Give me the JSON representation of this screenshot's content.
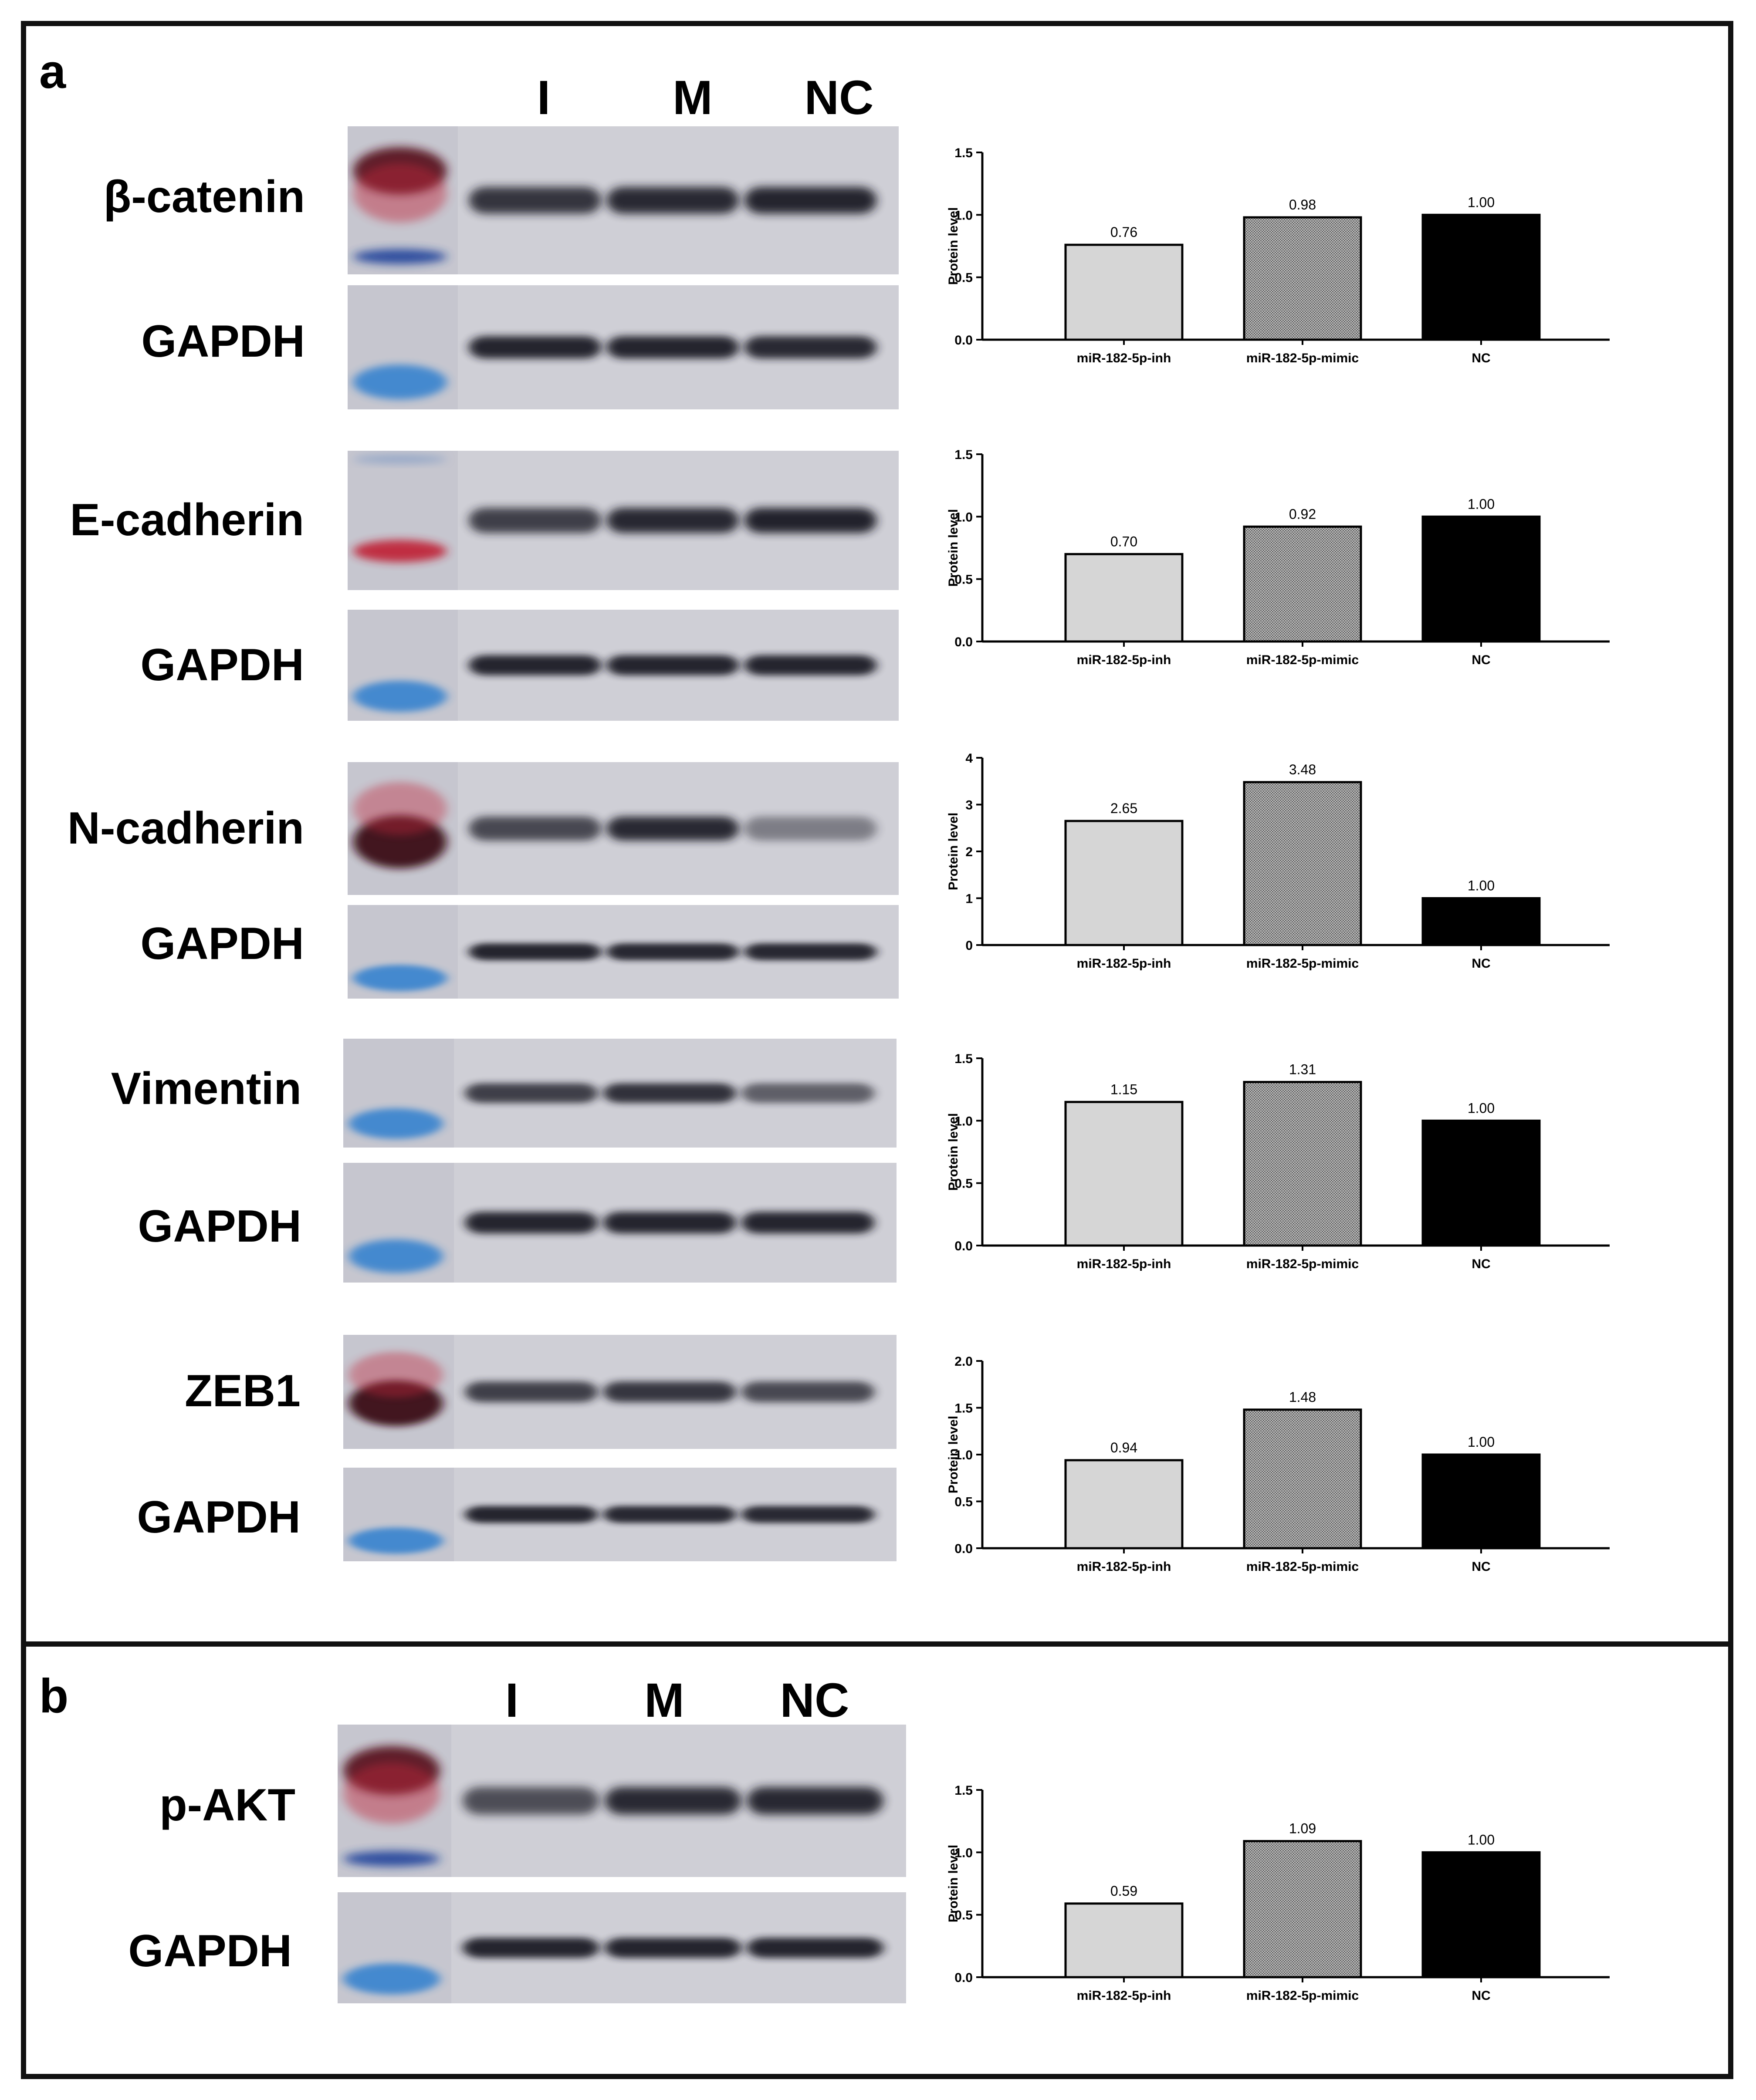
{
  "panels": {
    "a": "a",
    "b": "b"
  },
  "lanes": {
    "a": [
      "I",
      "M",
      "NC"
    ],
    "b": [
      "I",
      "M",
      "NC"
    ]
  },
  "colors": {
    "inh": "#d6d6d6",
    "mimic": "#8c8c8c",
    "nc": "#000000",
    "frame": "#111111",
    "marker_red": "#c0253a",
    "marker_blue": "#2f7fcf",
    "band": "#1e1e26"
  },
  "blots": [
    {
      "label": "β-catenin",
      "marker": "red-top-blue-bottom",
      "intensity": [
        0.86,
        0.92,
        0.95
      ]
    },
    {
      "label": "GAPDH",
      "marker": "blue",
      "intensity": [
        0.95,
        0.95,
        0.92
      ]
    },
    {
      "label": "E-cadherin",
      "marker": "red-middle",
      "intensity": [
        0.8,
        0.93,
        0.96
      ]
    },
    {
      "label": "GAPDH",
      "marker": "blue",
      "intensity": [
        0.95,
        0.95,
        0.95
      ]
    },
    {
      "label": "N-cadherin",
      "marker": "dark-red",
      "intensity": [
        0.75,
        0.92,
        0.45
      ]
    },
    {
      "label": "GAPDH",
      "marker": "blue",
      "intensity": [
        0.95,
        0.93,
        0.93
      ]
    },
    {
      "label": "Vimentin",
      "marker": "blue",
      "intensity": [
        0.8,
        0.88,
        0.62
      ]
    },
    {
      "label": "GAPDH",
      "marker": "blue",
      "intensity": [
        0.95,
        0.95,
        0.95
      ]
    },
    {
      "label": "ZEB1",
      "marker": "dark-red",
      "intensity": [
        0.8,
        0.85,
        0.75
      ]
    },
    {
      "label": "GAPDH",
      "marker": "blue",
      "intensity": [
        0.95,
        0.93,
        0.92
      ]
    },
    {
      "label": "p-AKT",
      "marker": "red-top-blue-bottom",
      "intensity": [
        0.72,
        0.92,
        0.93
      ]
    },
    {
      "label": "GAPDH",
      "marker": "blue",
      "intensity": [
        0.95,
        0.95,
        0.95
      ]
    }
  ],
  "chart_data": [
    {
      "type": "bar",
      "categories": [
        "miR-182-5p-inh",
        "miR-182-5p-mimic",
        "NC"
      ],
      "values": [
        0.76,
        0.98,
        1.0
      ],
      "value_labels": [
        "0.76",
        "0.98",
        "1.00"
      ],
      "ylabel": "Protein level",
      "ylim": [
        0,
        1.5
      ],
      "yticks": [
        "0.0",
        "0.5",
        "1.0",
        "1.5"
      ],
      "ytick_values": [
        0,
        0.5,
        1.0,
        1.5
      ]
    },
    {
      "type": "bar",
      "categories": [
        "miR-182-5p-inh",
        "miR-182-5p-mimic",
        "NC"
      ],
      "values": [
        0.7,
        0.92,
        1.0
      ],
      "value_labels": [
        "0.70",
        "0.92",
        "1.00"
      ],
      "ylabel": "Protein level",
      "ylim": [
        0,
        1.5
      ],
      "yticks": [
        "0.0",
        "0.5",
        "1.0",
        "1.5"
      ],
      "ytick_values": [
        0,
        0.5,
        1.0,
        1.5
      ]
    },
    {
      "type": "bar",
      "categories": [
        "miR-182-5p-inh",
        "miR-182-5p-mimic",
        "NC"
      ],
      "values": [
        2.65,
        3.48,
        1.0
      ],
      "value_labels": [
        "2.65",
        "3.48",
        "1.00"
      ],
      "ylabel": "Protein level",
      "ylim": [
        0,
        4
      ],
      "yticks": [
        "0",
        "1",
        "2",
        "3",
        "4"
      ],
      "ytick_values": [
        0,
        1,
        2,
        3,
        4
      ]
    },
    {
      "type": "bar",
      "categories": [
        "miR-182-5p-inh",
        "miR-182-5p-mimic",
        "NC"
      ],
      "values": [
        1.15,
        1.31,
        1.0
      ],
      "value_labels": [
        "1.15",
        "1.31",
        "1.00"
      ],
      "ylabel": "Protein level",
      "ylim": [
        0,
        1.5
      ],
      "yticks": [
        "0.0",
        "0.5",
        "1.0",
        "1.5"
      ],
      "ytick_values": [
        0,
        0.5,
        1.0,
        1.5
      ]
    },
    {
      "type": "bar",
      "categories": [
        "miR-182-5p-inh",
        "miR-182-5p-mimic",
        "NC"
      ],
      "values": [
        0.94,
        1.48,
        1.0
      ],
      "value_labels": [
        "0.94",
        "1.48",
        "1.00"
      ],
      "ylabel": "Protein level",
      "ylim": [
        0,
        2.0
      ],
      "yticks": [
        "0.0",
        "0.5",
        "1.0",
        "1.5",
        "2.0"
      ],
      "ytick_values": [
        0,
        0.5,
        1.0,
        1.5,
        2.0
      ]
    },
    {
      "type": "bar",
      "categories": [
        "miR-182-5p-inh",
        "miR-182-5p-mimic",
        "NC"
      ],
      "values": [
        0.59,
        1.09,
        1.0
      ],
      "value_labels": [
        "0.59",
        "1.09",
        "1.00"
      ],
      "ylabel": "Protein level",
      "ylim": [
        0,
        1.5
      ],
      "yticks": [
        "0.0",
        "0.5",
        "1.0",
        "1.5"
      ],
      "ytick_values": [
        0,
        0.5,
        1.0,
        1.5
      ]
    }
  ]
}
